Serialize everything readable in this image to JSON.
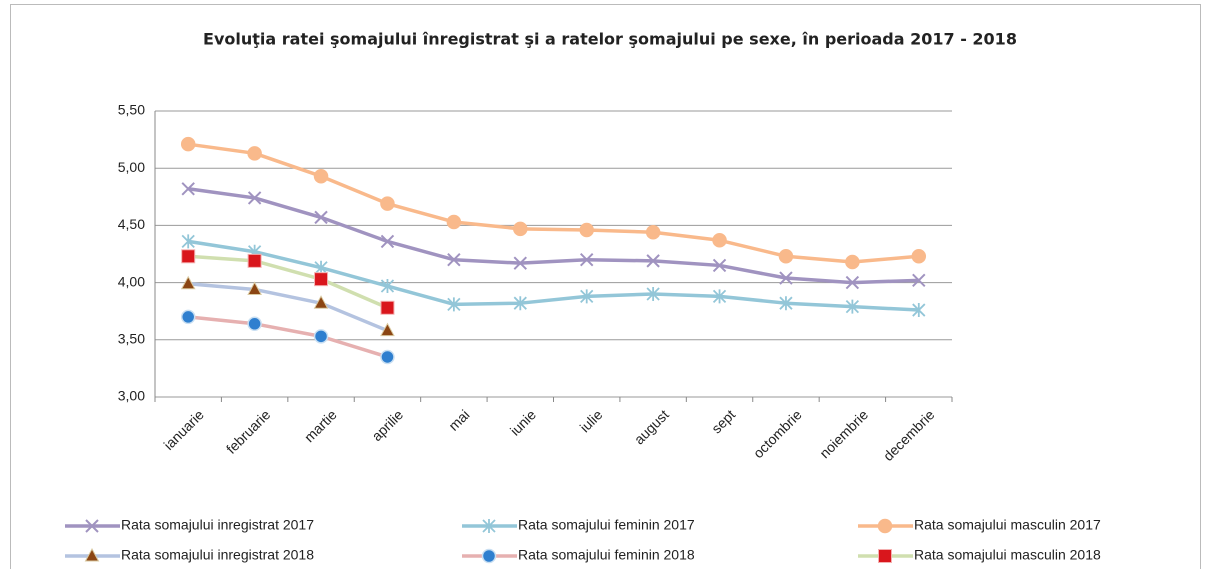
{
  "chart_data": {
    "type": "line",
    "title": "Evoluţia ratei şomajului înregistrat şi a ratelor şomajului pe sexe, în perioada 2017 - 2018",
    "categories": [
      "ianuarie",
      "februarie",
      "martie",
      "aprilie",
      "mai",
      "iunie",
      "iulie",
      "august",
      "sept",
      "octombrie",
      "noiembrie",
      "decembrie"
    ],
    "ylim": [
      3,
      5.5
    ],
    "yticks": [
      {
        "value": 3,
        "label": "3,00"
      },
      {
        "value": 3.5,
        "label": "3,50"
      },
      {
        "value": 4,
        "label": "4,00"
      },
      {
        "value": 4.5,
        "label": "4,50"
      },
      {
        "value": 5,
        "label": "5,00"
      },
      {
        "value": 5.5,
        "label": "5,50"
      }
    ],
    "grid": true,
    "legend": "bottom",
    "series": [
      {
        "name": "Rata somajului inregistrat 2017",
        "color": "#a093c0",
        "marker": "x",
        "marker_color": "#a093c0",
        "values": [
          4.82,
          4.74,
          4.57,
          4.36,
          4.2,
          4.17,
          4.2,
          4.19,
          4.15,
          4.04,
          4.0,
          4.02
        ]
      },
      {
        "name": "Rata somajului feminin 2017",
        "color": "#93c6d8",
        "marker": "asterisk",
        "marker_color": "#93c6d8",
        "values": [
          4.36,
          4.27,
          4.13,
          3.97,
          3.81,
          3.82,
          3.88,
          3.9,
          3.88,
          3.82,
          3.79,
          3.76
        ]
      },
      {
        "name": "Rata somajului masculin 2017",
        "color": "#f9b98b",
        "marker": "circle",
        "marker_color": "#f9b98b",
        "values": [
          5.21,
          5.13,
          4.93,
          4.69,
          4.53,
          4.47,
          4.46,
          4.44,
          4.37,
          4.23,
          4.18,
          4.23
        ]
      },
      {
        "name": "Rata somajului inregistrat 2018",
        "color": "#b4c3e0",
        "marker": "triangle",
        "marker_color": "#8b4513",
        "values": [
          3.99,
          3.94,
          3.82,
          3.58,
          null,
          null,
          null,
          null,
          null,
          null,
          null,
          null
        ]
      },
      {
        "name": "Rata somajului feminin 2018",
        "color": "#e6b0b0",
        "marker": "circle",
        "marker_color": "#2f7fcf",
        "values": [
          3.7,
          3.64,
          3.53,
          3.35,
          null,
          null,
          null,
          null,
          null,
          null,
          null,
          null
        ]
      },
      {
        "name": "Rata somajului masculin 2018",
        "color": "#d0dfaf",
        "marker": "square",
        "marker_color": "#d9161c",
        "values": [
          4.23,
          4.19,
          4.03,
          3.78,
          null,
          null,
          null,
          null,
          null,
          null,
          null,
          null
        ]
      }
    ]
  }
}
